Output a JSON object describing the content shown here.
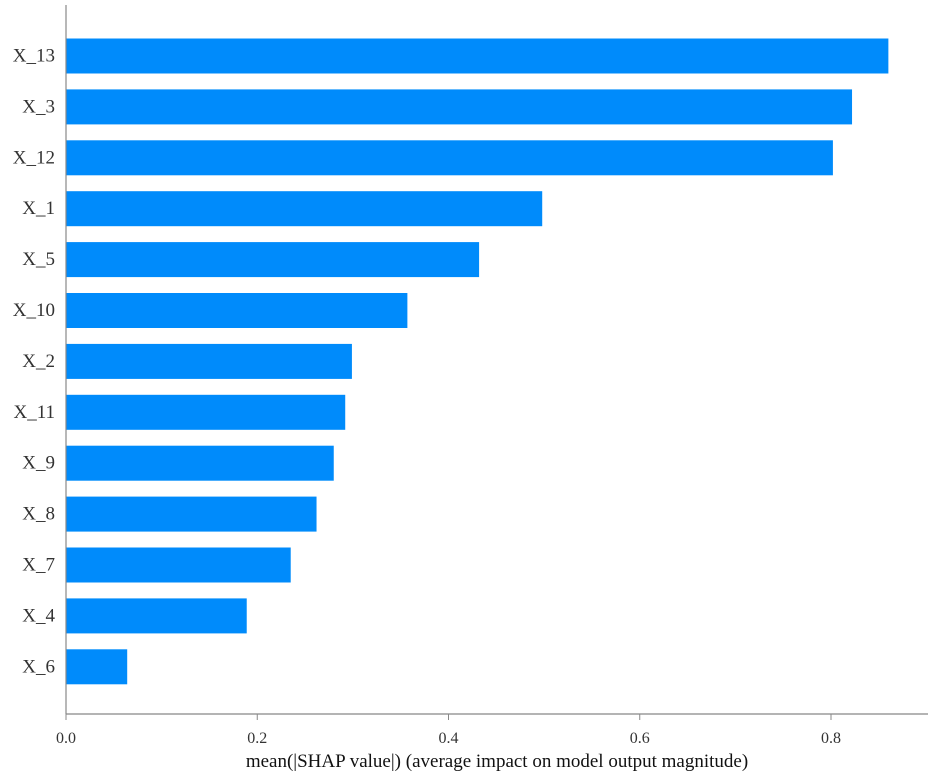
{
  "chart_data": {
    "type": "bar",
    "orientation": "horizontal",
    "categories": [
      "X_13",
      "X_3",
      "X_12",
      "X_1",
      "X_5",
      "X_10",
      "X_2",
      "X_11",
      "X_9",
      "X_8",
      "X_7",
      "X_4",
      "X_6"
    ],
    "values": [
      0.86,
      0.822,
      0.802,
      0.498,
      0.432,
      0.357,
      0.299,
      0.292,
      0.28,
      0.262,
      0.235,
      0.189,
      0.064
    ],
    "xlabel": "mean(|SHAP value|) (average impact on model output magnitude)",
    "ylabel": "",
    "title": "",
    "xlim": [
      0,
      0.9
    ],
    "xticks": [
      0.0,
      0.2,
      0.4,
      0.6,
      0.8
    ],
    "xtick_labels": [
      "0.0",
      "0.2",
      "0.4",
      "0.6",
      "0.8"
    ],
    "bar_color": "#008bfb",
    "grid": false,
    "legend": "none"
  }
}
